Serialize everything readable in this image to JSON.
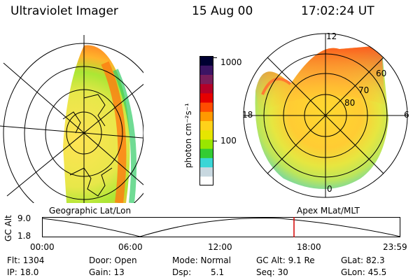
{
  "header": {
    "title": "Ultraviolet Imager",
    "date": "15 Aug 00",
    "time": "17:02:24 UT"
  },
  "colorbar": {
    "unit_label": "photon cm⁻²s⁻¹",
    "ticks": [
      {
        "label": "1000",
        "value": 1000
      },
      {
        "label": "100",
        "value": 100
      }
    ],
    "colors": [
      "#ffffff",
      "#c8d8e0",
      "#3ad6d6",
      "#33cc33",
      "#99e600",
      "#e6e600",
      "#ffd21a",
      "#ff9900",
      "#ff4d00",
      "#e60000",
      "#b40028",
      "#781e5a",
      "#3c1464",
      "#000032"
    ]
  },
  "left_panel": {
    "label": "Geographic Lat/Lon"
  },
  "right_panel": {
    "label": "Apex MLat/MLT",
    "mlt_labels": {
      "top": "12",
      "left": "18",
      "right": "6",
      "bottom": "0"
    },
    "lat_labels": [
      "60",
      "70",
      "80"
    ]
  },
  "altitude_plot": {
    "ylabel": "GC Alt",
    "yticks": [
      "9.0",
      "1.8"
    ],
    "xticks": [
      "00:00",
      "06:00",
      "12:00",
      "18:00",
      "23:59"
    ],
    "marker_color": "#d40000"
  },
  "info": {
    "flt": "Flt: 1304",
    "ip": "IP: 18.0",
    "door": "Door: Open",
    "gain": "Gain: 13",
    "mode": "Mode: Normal",
    "dsp_label": "Dsp:",
    "dsp_value": "5.1",
    "gcalt": "GC Alt: 9.1 Re",
    "seq": "Seq: 30",
    "glat": "GLat: 82.3",
    "glon": "GLon: 45.5"
  }
}
